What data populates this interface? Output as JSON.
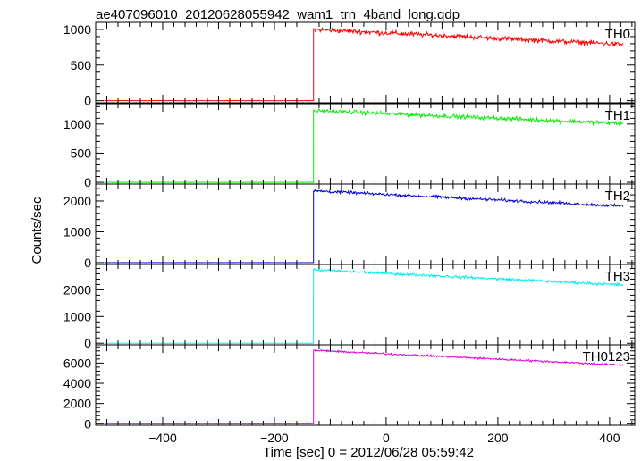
{
  "chart_data": {
    "type": "line",
    "title": "ae407096010_20120628055942_wam1_trn_4band_long.qdp",
    "xlabel": "Time [sec] 0 = 2012/06/28 05:59:42",
    "ylabel": "Counts/sec",
    "xlim": [
      -520,
      445
    ],
    "x_ticks": [
      -400,
      -200,
      0,
      200,
      400
    ],
    "grid": false,
    "trigger_time": -130,
    "data_start": -505,
    "data_end": 425,
    "panels": [
      {
        "name": "TH0",
        "color": "#ff0000",
        "ylim": [
          -30,
          1100
        ],
        "y_ticks": [
          0,
          500,
          1000
        ],
        "background": 0,
        "peak": 1000,
        "end_value": 790,
        "noise": 28
      },
      {
        "name": "TH1",
        "color": "#00ee00",
        "ylim": [
          -30,
          1350
        ],
        "y_ticks": [
          0,
          500,
          1000
        ],
        "background": 0,
        "peak": 1230,
        "end_value": 1010,
        "noise": 30
      },
      {
        "name": "TH2",
        "color": "#0000dd",
        "ylim": [
          -60,
          2550
        ],
        "y_ticks": [
          0,
          1000,
          2000
        ],
        "background": 0,
        "peak": 2330,
        "end_value": 1830,
        "noise": 40
      },
      {
        "name": "TH3",
        "color": "#00eeee",
        "ylim": [
          -60,
          2950
        ],
        "y_ticks": [
          0,
          1000,
          2000
        ],
        "background": 0,
        "peak": 2750,
        "end_value": 2180,
        "noise": 45
      },
      {
        "name": "TH0123",
        "color": "#dd00dd",
        "ylim": [
          -150,
          7800
        ],
        "y_ticks": [
          0,
          2000,
          4000,
          6000
        ],
        "background": 0,
        "peak": 7250,
        "end_value": 5800,
        "noise": 80
      }
    ]
  }
}
